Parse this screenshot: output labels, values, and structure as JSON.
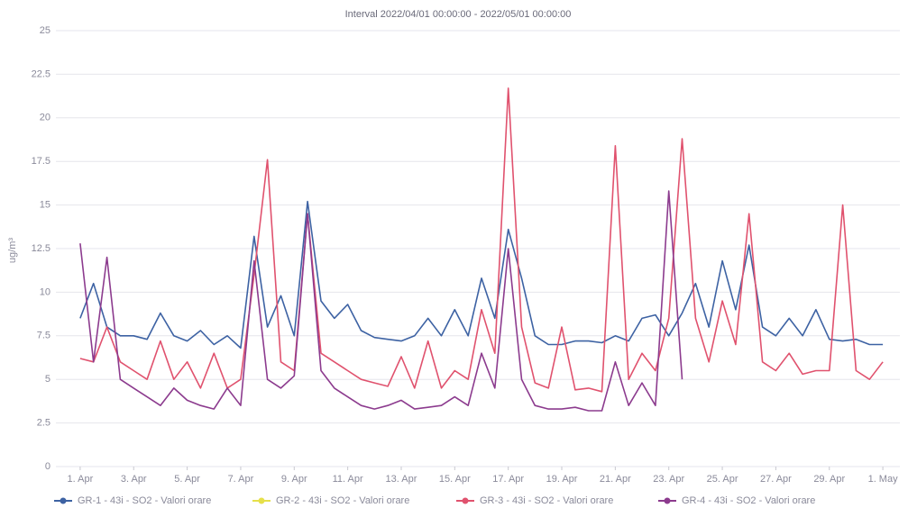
{
  "chart_data": {
    "type": "line",
    "title": "Interval 2022/04/01 00:00:00 - 2022/05/01 00:00:00",
    "y_label": "ug/m³",
    "x": [
      0,
      0.5,
      1,
      1.5,
      2,
      2.5,
      3,
      3.5,
      4,
      4.5,
      5,
      5.5,
      6,
      6.5,
      7,
      7.5,
      8,
      8.5,
      9,
      9.5,
      10,
      10.5,
      11,
      11.5,
      12,
      12.5,
      13,
      13.5,
      14,
      14.5,
      15,
      15.5,
      16,
      16.5,
      17,
      17.5,
      18,
      18.5,
      19,
      19.5,
      20,
      20.5,
      21,
      21.5,
      22,
      22.5,
      23,
      23.5,
      24,
      24.5,
      25,
      25.5,
      26,
      26.5,
      27,
      27.5,
      28,
      28.5,
      29,
      29.5,
      30
    ],
    "xlim": [
      -0.3,
      30.3
    ],
    "xticks": [
      {
        "value": 0,
        "label": "1. Apr"
      },
      {
        "value": 2,
        "label": "3. Apr"
      },
      {
        "value": 4,
        "label": "5. Apr"
      },
      {
        "value": 6,
        "label": "7. Apr"
      },
      {
        "value": 8,
        "label": "9. Apr"
      },
      {
        "value": 10,
        "label": "11. Apr"
      },
      {
        "value": 12,
        "label": "13. Apr"
      },
      {
        "value": 14,
        "label": "15. Apr"
      },
      {
        "value": 16,
        "label": "17. Apr"
      },
      {
        "value": 18,
        "label": "19. Apr"
      },
      {
        "value": 20,
        "label": "21. Apr"
      },
      {
        "value": 22,
        "label": "23. Apr"
      },
      {
        "value": 24,
        "label": "25. Apr"
      },
      {
        "value": 26,
        "label": "27. Apr"
      },
      {
        "value": 28,
        "label": "29. Apr"
      },
      {
        "value": 30,
        "label": "1. May"
      }
    ],
    "ylim": [
      0,
      25
    ],
    "yticks": [
      0,
      2.5,
      5,
      7.5,
      10,
      12.5,
      15,
      17.5,
      20,
      22.5,
      25
    ],
    "grid": true,
    "legend": "bottom",
    "series": [
      {
        "name": "GR-1 - 43i - SO2 - Valori orare",
        "color": "#3d62a3",
        "values": [
          8.5,
          10.5,
          8,
          7.5,
          7.5,
          7.3,
          8.8,
          7.5,
          7.2,
          7.8,
          7,
          7.5,
          6.8,
          13.2,
          8,
          9.8,
          7.5,
          15.2,
          9.5,
          8.5,
          9.3,
          7.8,
          7.4,
          7.3,
          7.2,
          7.5,
          8.5,
          7.5,
          9,
          7.5,
          10.8,
          8.5,
          13.6,
          10.8,
          7.5,
          7,
          7,
          7.2,
          7.2,
          7.1,
          7.5,
          7.2,
          8.5,
          8.7,
          7.5,
          8.8,
          10.5,
          8,
          11.8,
          9,
          12.7,
          8,
          7.5,
          8.5,
          7.5,
          9,
          7.3,
          7.2,
          7.3,
          7,
          7
        ]
      },
      {
        "name": "GR-2 - 43i - SO2 - Valori orare",
        "color": "#e6e04a",
        "values": [
          null,
          null,
          null,
          null,
          null,
          null,
          null,
          null,
          null,
          null,
          null,
          null,
          null,
          null,
          null,
          null,
          null,
          null,
          null,
          null,
          null,
          null,
          null,
          null,
          null,
          null,
          null,
          null,
          null,
          null,
          null,
          null,
          null,
          null,
          null,
          null,
          null,
          null,
          null,
          null,
          null,
          null,
          null,
          null,
          null,
          null,
          null,
          null,
          null,
          null,
          null,
          null,
          null,
          null,
          null,
          null,
          null,
          null,
          null,
          null,
          null
        ]
      },
      {
        "name": "GR-3 - 43i - SO2 - Valori orare",
        "color": "#e0526e",
        "values": [
          6.2,
          6,
          8,
          6,
          5.5,
          5,
          7.2,
          5,
          6,
          4.5,
          6.5,
          4.5,
          5,
          11,
          17.6,
          6,
          5.5,
          14.5,
          6.5,
          6,
          5.5,
          5,
          4.8,
          4.6,
          6.3,
          4.5,
          7.2,
          4.5,
          5.5,
          5,
          9,
          6.5,
          21.7,
          8,
          4.8,
          4.5,
          8,
          4.4,
          4.5,
          4.3,
          18.4,
          5,
          6.5,
          5.5,
          8.5,
          18.8,
          8.5,
          6,
          9.5,
          7,
          14.5,
          6,
          5.5,
          6.5,
          5.3,
          5.5,
          5.5,
          15,
          5.5,
          5,
          6
        ]
      },
      {
        "name": "GR-4 - 43i - SO2 - Valori orare",
        "color": "#8c3b8e",
        "values": [
          12.8,
          6,
          12,
          5,
          4.5,
          4,
          3.5,
          4.5,
          3.8,
          3.5,
          3.3,
          4.5,
          3.5,
          11.8,
          5,
          4.5,
          5.2,
          14.5,
          5.5,
          4.5,
          4,
          3.5,
          3.3,
          3.5,
          3.8,
          3.3,
          3.4,
          3.5,
          4,
          3.5,
          6.5,
          4.5,
          12.5,
          5,
          3.5,
          3.3,
          3.3,
          3.4,
          3.2,
          3.2,
          6,
          3.5,
          4.8,
          3.5,
          15.8,
          5,
          null,
          null,
          null,
          null,
          null,
          null,
          null,
          null,
          null,
          null,
          null,
          null,
          null,
          null,
          null
        ]
      }
    ]
  }
}
